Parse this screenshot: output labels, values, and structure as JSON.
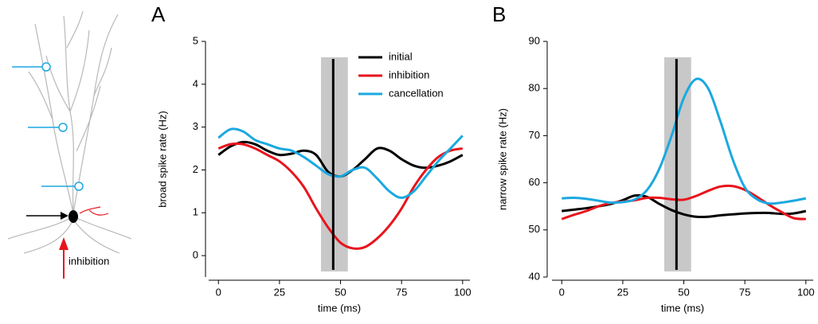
{
  "diagram": {
    "label": "inhibition"
  },
  "chart_data": [
    {
      "type": "line",
      "panel_label": "A",
      "xlabel": "time (ms)",
      "ylabel": "broad spike rate (Hz)",
      "x": [
        0,
        5,
        10,
        15,
        20,
        25,
        30,
        35,
        40,
        45,
        50,
        55,
        60,
        65,
        70,
        75,
        80,
        85,
        90,
        95,
        100
      ],
      "xlim": [
        -4,
        103
      ],
      "xticks": [
        0,
        25,
        50,
        75,
        100
      ],
      "ylim": [
        -0.5,
        5
      ],
      "yticks": [
        0,
        1,
        2,
        3,
        4,
        5
      ],
      "marker_x": 47,
      "shade": [
        42,
        53
      ],
      "legend": "upper right",
      "series": [
        {
          "name": "initial",
          "color": "#000000",
          "values": [
            2.35,
            2.55,
            2.65,
            2.6,
            2.45,
            2.35,
            2.38,
            2.45,
            2.35,
            1.95,
            1.85,
            2.0,
            2.25,
            2.5,
            2.45,
            2.25,
            2.1,
            2.05,
            2.1,
            2.2,
            2.35
          ]
        },
        {
          "name": "inhibition",
          "color": "#e8141c",
          "values": [
            2.5,
            2.6,
            2.6,
            2.5,
            2.35,
            2.2,
            1.95,
            1.6,
            1.1,
            0.65,
            0.3,
            0.17,
            0.2,
            0.4,
            0.7,
            1.1,
            1.6,
            2.0,
            2.3,
            2.45,
            2.5
          ]
        },
        {
          "name": "cancellation",
          "color": "#1aa9e0",
          "values": [
            2.75,
            2.95,
            2.9,
            2.7,
            2.6,
            2.5,
            2.45,
            2.3,
            2.1,
            1.9,
            1.85,
            2.0,
            2.05,
            1.8,
            1.5,
            1.35,
            1.5,
            1.85,
            2.2,
            2.5,
            2.8
          ]
        }
      ]
    },
    {
      "type": "line",
      "panel_label": "B",
      "xlabel": "time (ms)",
      "ylabel": "narrow spike rate (Hz)",
      "x": [
        0,
        5,
        10,
        15,
        20,
        25,
        30,
        35,
        40,
        45,
        50,
        55,
        60,
        65,
        70,
        75,
        80,
        85,
        90,
        95,
        100
      ],
      "xlim": [
        -4,
        103
      ],
      "xticks": [
        0,
        25,
        50,
        75,
        100
      ],
      "ylim": [
        40,
        90
      ],
      "yticks": [
        40,
        50,
        60,
        70,
        80,
        90
      ],
      "marker_x": 47,
      "shade": [
        42,
        53
      ],
      "series": [
        {
          "color": "#000000",
          "values": [
            54,
            54.3,
            54.6,
            55,
            55.5,
            56.3,
            57.3,
            57,
            55.5,
            54.2,
            53.3,
            52.8,
            52.8,
            53.1,
            53.3,
            53.5,
            53.6,
            53.6,
            53.4,
            53.5,
            54
          ]
        },
        {
          "color": "#e8141c",
          "values": [
            52.3,
            53.2,
            54,
            55,
            55.7,
            56,
            56.3,
            56.8,
            56.8,
            56.5,
            56.4,
            57.2,
            58.3,
            59.2,
            59.3,
            58.5,
            57,
            55.3,
            53.8,
            52.5,
            52.3
          ]
        },
        {
          "color": "#1aa9e0",
          "values": [
            56.7,
            56.8,
            56.6,
            56.2,
            55.8,
            55.9,
            56.5,
            58.5,
            63,
            70,
            78,
            82,
            80,
            73,
            65,
            59,
            56.5,
            55.6,
            55.8,
            56.2,
            56.7
          ]
        }
      ]
    }
  ]
}
